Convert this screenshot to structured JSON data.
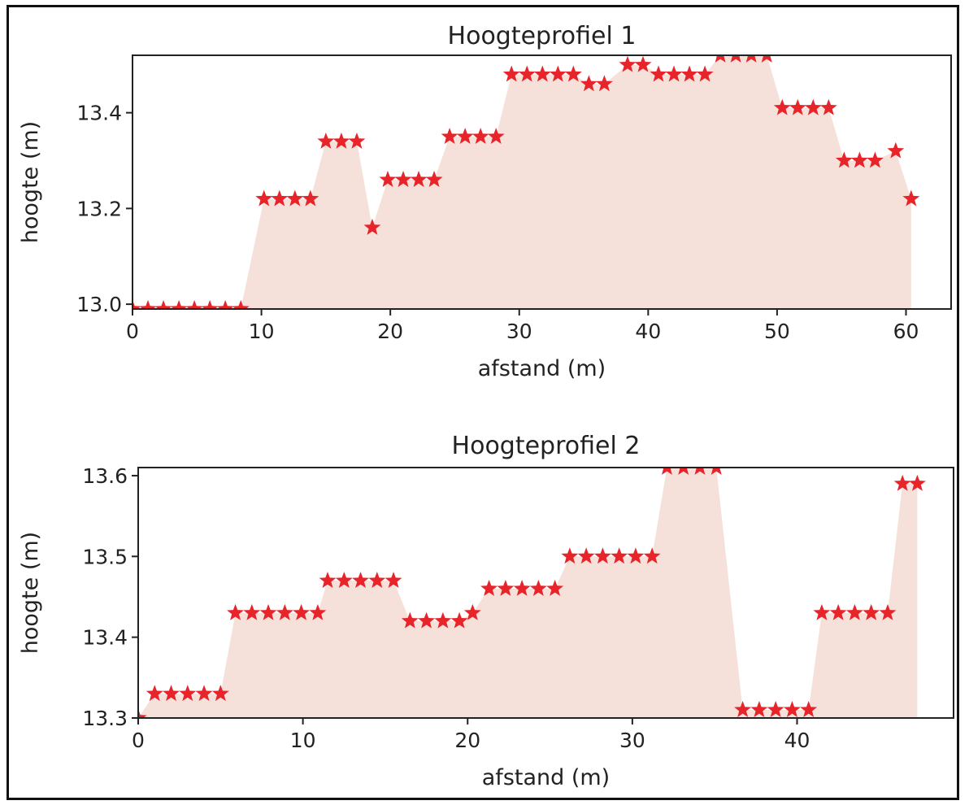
{
  "chart_data": [
    {
      "type": "area",
      "title": "Hoogteprofiel 1",
      "xlabel": "afstand (m)",
      "ylabel": "hoogte (m)",
      "xlim": [
        0,
        63.5
      ],
      "ylim": [
        12.99,
        13.52
      ],
      "xticks": [
        "0",
        "10",
        "20",
        "30",
        "40",
        "50",
        "60"
      ],
      "yticks": [
        "13.0",
        "13.2",
        "13.4"
      ],
      "marker": "star",
      "marker_color": "#e8242b",
      "fill_color": "#f5e1da",
      "grid": false,
      "series": [
        {
          "x": [
            0,
            1.2,
            2.4,
            3.6,
            4.8,
            6.0,
            7.2,
            8.4,
            10.2,
            11.4,
            12.6,
            13.8,
            15.0,
            16.2,
            17.4,
            18.6,
            19.8,
            21.0,
            22.2,
            23.4,
            24.6,
            25.8,
            27.0,
            28.2,
            29.4,
            30.6,
            31.8,
            33.0,
            34.2,
            35.4,
            36.6,
            38.4,
            39.6,
            40.8,
            42.0,
            43.2,
            44.4,
            45.6,
            46.8,
            48.0,
            49.2,
            50.4,
            51.6,
            52.8,
            54.0,
            55.2,
            56.4,
            57.6,
            59.2,
            60.4
          ],
          "y": [
            12.99,
            12.99,
            12.99,
            12.99,
            12.99,
            12.99,
            12.99,
            12.99,
            13.22,
            13.22,
            13.22,
            13.22,
            13.34,
            13.34,
            13.34,
            13.16,
            13.26,
            13.26,
            13.26,
            13.26,
            13.35,
            13.35,
            13.35,
            13.35,
            13.48,
            13.48,
            13.48,
            13.48,
            13.48,
            13.46,
            13.46,
            13.5,
            13.5,
            13.48,
            13.48,
            13.48,
            13.48,
            13.52,
            13.52,
            13.52,
            13.52,
            13.41,
            13.41,
            13.41,
            13.41,
            13.3,
            13.3,
            13.3,
            13.32,
            13.22
          ]
        }
      ]
    },
    {
      "type": "area",
      "title": "Hoogteprofiel 2",
      "xlabel": "afstand (m)",
      "ylabel": "hoogte (m)",
      "xlim": [
        0,
        49.5
      ],
      "ylim": [
        13.3,
        13.61
      ],
      "xticks": [
        "0",
        "10",
        "20",
        "30",
        "40"
      ],
      "yticks": [
        "13.3",
        "13.4",
        "13.5",
        "13.6"
      ],
      "marker": "star",
      "marker_color": "#e8242b",
      "fill_color": "#f5e1da",
      "grid": false,
      "series": [
        {
          "x": [
            0,
            1.0,
            2.0,
            3.0,
            4.0,
            5.0,
            5.9,
            6.9,
            7.9,
            8.9,
            9.9,
            10.9,
            11.5,
            12.5,
            13.5,
            14.5,
            15.5,
            16.5,
            17.5,
            18.5,
            19.5,
            20.3,
            21.3,
            22.3,
            23.3,
            24.3,
            25.3,
            26.2,
            27.2,
            28.2,
            29.2,
            30.2,
            31.2,
            32.1,
            33.1,
            34.1,
            35.1,
            36.7,
            37.7,
            38.7,
            39.7,
            40.7,
            41.5,
            42.5,
            43.5,
            44.5,
            45.5,
            46.4,
            47.3
          ],
          "y": [
            13.3,
            13.33,
            13.33,
            13.33,
            13.33,
            13.33,
            13.43,
            13.43,
            13.43,
            13.43,
            13.43,
            13.43,
            13.47,
            13.47,
            13.47,
            13.47,
            13.47,
            13.42,
            13.42,
            13.42,
            13.42,
            13.43,
            13.46,
            13.46,
            13.46,
            13.46,
            13.46,
            13.5,
            13.5,
            13.5,
            13.5,
            13.5,
            13.5,
            13.61,
            13.61,
            13.61,
            13.61,
            13.31,
            13.31,
            13.31,
            13.31,
            13.31,
            13.43,
            13.43,
            13.43,
            13.43,
            13.43,
            13.59,
            13.59
          ]
        }
      ]
    }
  ]
}
